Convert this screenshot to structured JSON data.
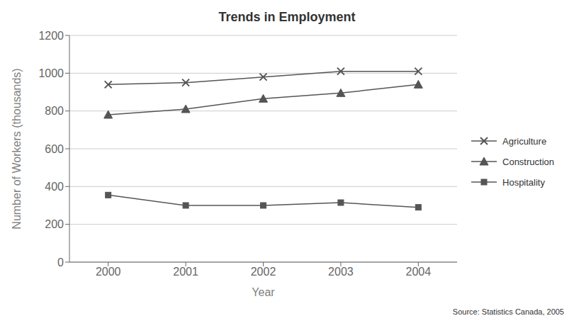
{
  "chart_data": {
    "type": "line",
    "title": "Trends in Employment",
    "xlabel": "Year",
    "ylabel": "Number of Workers (thousands)",
    "x": [
      2000,
      2001,
      2002,
      2003,
      2004
    ],
    "xlim": [
      1999.5,
      2004.5
    ],
    "xticks": [
      2000,
      2001,
      2002,
      2003,
      2004
    ],
    "ylim": [
      0,
      1200
    ],
    "yticks": [
      0,
      200,
      400,
      600,
      800,
      1000,
      1200
    ],
    "grid": "y",
    "legend": "right",
    "annotations": [
      "Source: Statistics Canada, 2005"
    ],
    "series": [
      {
        "name": "Agriculture",
        "color": "#555555",
        "marker": "x",
        "values": [
          940,
          950,
          980,
          1010,
          1010
        ]
      },
      {
        "name": "Construction",
        "color": "#555555",
        "marker": "triangle",
        "values": [
          780,
          810,
          865,
          895,
          940
        ]
      },
      {
        "name": "Hospitality",
        "color": "#555555",
        "marker": "square",
        "values": [
          355,
          300,
          300,
          315,
          290
        ]
      }
    ]
  }
}
